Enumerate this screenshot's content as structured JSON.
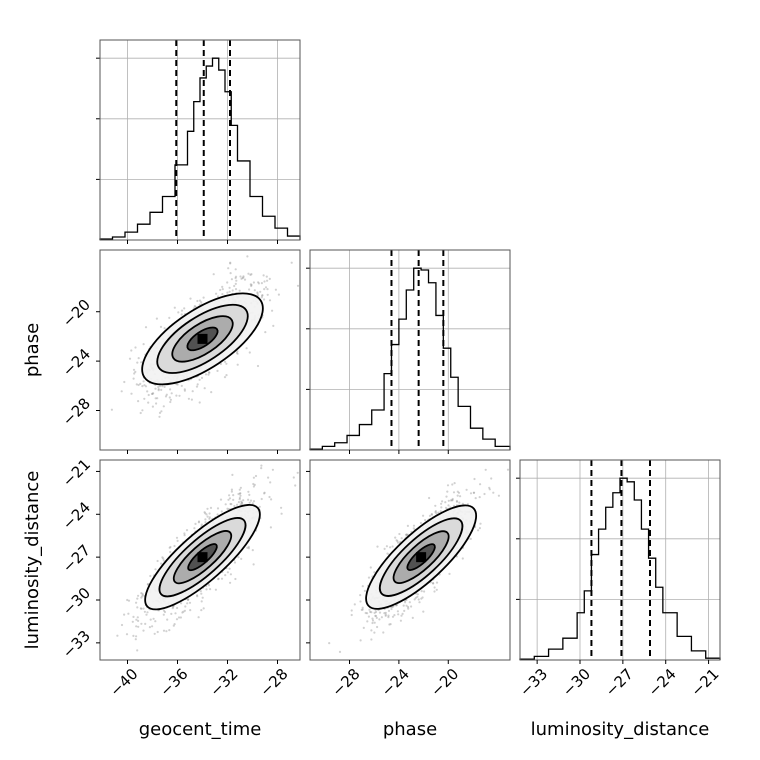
{
  "chart_data": {
    "type": "corner",
    "parameters": [
      "geocent_time",
      "phase",
      "luminosity_distance"
    ],
    "axis_labels": {
      "x": [
        "geocent_time",
        "phase",
        "luminosity_distance"
      ],
      "y": [
        "phase",
        "luminosity_distance"
      ]
    },
    "ranges": {
      "geocent_time": [
        -42.2,
        -26.2
      ],
      "phase": [
        -31.2,
        -15.0
      ],
      "luminosity_distance": [
        -34.2,
        -20.2
      ]
    },
    "ticks": {
      "geocent_time": [
        -40,
        -36,
        -32,
        -28
      ],
      "phase": [
        -28,
        -24,
        -20
      ],
      "luminosity_distance": [
        -33,
        -30,
        -27,
        -24,
        -21
      ]
    },
    "grid": true,
    "colors": {
      "hist": "#000000",
      "quantile": "#000000",
      "points": "#9a9a9a",
      "density": "#000000"
    },
    "marginals": {
      "geocent_time": {
        "bins": [
          -42.2,
          -41.2,
          -40.2,
          -39.2,
          -38.2,
          -37.2,
          -36.2,
          -35.2,
          -34.7,
          -34.2,
          -33.7,
          -33.2,
          -32.7,
          -32.2,
          -31.7,
          -31.2,
          -30.2,
          -29.2,
          -28.2,
          -27.2,
          -26.2
        ],
        "counts": [
          0.5,
          1.5,
          4,
          8,
          14,
          22,
          38,
          55,
          70,
          82,
          88,
          92,
          86,
          75,
          58,
          40,
          22,
          12,
          6,
          2
        ],
        "quantiles": [
          -36.1,
          -33.9,
          -31.8
        ]
      },
      "phase": {
        "bins": [
          -31.2,
          -30.2,
          -29.2,
          -28.2,
          -27.2,
          -26.2,
          -25.2,
          -24.6,
          -24.0,
          -23.4,
          -22.8,
          -22.2,
          -21.6,
          -21.0,
          -20.4,
          -19.8,
          -19.2,
          -18.2,
          -17.2,
          -16.2,
          -15.0
        ],
        "counts": [
          0.5,
          2,
          4,
          8,
          14,
          22,
          42,
          58,
          72,
          88,
          100,
          99,
          92,
          74,
          56,
          40,
          24,
          12,
          6,
          2
        ],
        "quantiles": [
          -24.6,
          -22.4,
          -20.4
        ]
      },
      "luminosity_distance": {
        "bins": [
          -34.2,
          -33.2,
          -32.2,
          -31.2,
          -30.2,
          -29.7,
          -29.2,
          -28.7,
          -28.2,
          -27.7,
          -27.2,
          -26.7,
          -26.2,
          -25.7,
          -25.2,
          -24.7,
          -24.2,
          -23.2,
          -22.2,
          -21.2,
          -20.2
        ],
        "counts": [
          0.5,
          2,
          6,
          12,
          26,
          38,
          58,
          72,
          84,
          92,
          100,
          98,
          88,
          72,
          56,
          40,
          26,
          13,
          5,
          1
        ],
        "quantiles": [
          -29.2,
          -27.1,
          -25.1
        ]
      }
    },
    "joint": [
      {
        "x": "geocent_time",
        "y": "phase",
        "mean": [
          -34.0,
          -22.2
        ],
        "sd": [
          2.2,
          2.1
        ],
        "rho": 0.7,
        "contour_levels_sigma": [
          0.5,
          1.0,
          1.5,
          2.0
        ]
      },
      {
        "x": "geocent_time",
        "y": "luminosity_distance",
        "mean": [
          -34.0,
          -27.0
        ],
        "sd": [
          2.1,
          2.0
        ],
        "rho": 0.82,
        "contour_levels_sigma": [
          0.5,
          1.0,
          1.5,
          2.0
        ]
      },
      {
        "x": "phase",
        "y": "luminosity_distance",
        "mean": [
          -22.2,
          -27.0
        ],
        "sd": [
          2.0,
          2.0
        ],
        "rho": 0.8,
        "contour_levels_sigma": [
          0.5,
          1.0,
          1.5,
          2.0
        ]
      }
    ]
  }
}
